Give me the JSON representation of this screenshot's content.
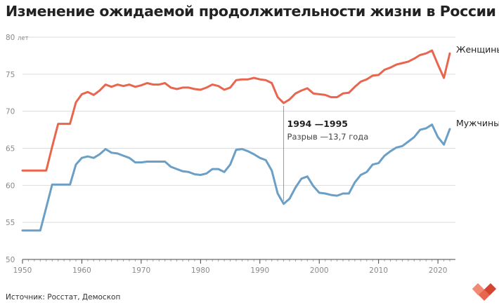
{
  "title": "Изменение ожидаемой продолжительности жизни в России",
  "source": "Источник: Росстат, Демоскоп",
  "logo_icon": "red-heart-pixel-icon",
  "chart_data": {
    "type": "line",
    "title": "Изменение ожидаемой продолжительности жизни в России",
    "xlabel": "",
    "ylabel": "лет",
    "xlim": [
      1950,
      2022
    ],
    "ylim": [
      50,
      80
    ],
    "x_ticks": [
      1950,
      1960,
      1970,
      1980,
      1990,
      2000,
      2010,
      2020
    ],
    "y_ticks": [
      50,
      55,
      60,
      65,
      70,
      75,
      80
    ],
    "y_unit_label": "80 лет",
    "grid": true,
    "colors": {
      "female": "#e8664e",
      "male": "#6b9fc6",
      "grid": "#dddddd",
      "axis": "#444444",
      "annotation": "#999999"
    },
    "x": [
      1950,
      1951,
      1952,
      1953,
      1954,
      1955,
      1956,
      1957,
      1958,
      1959,
      1960,
      1961,
      1962,
      1963,
      1964,
      1965,
      1966,
      1967,
      1968,
      1969,
      1970,
      1971,
      1972,
      1973,
      1974,
      1975,
      1976,
      1977,
      1978,
      1979,
      1980,
      1981,
      1982,
      1983,
      1984,
      1985,
      1986,
      1987,
      1988,
      1989,
      1990,
      1991,
      1992,
      1993,
      1994,
      1995,
      1996,
      1997,
      1998,
      1999,
      2000,
      2001,
      2002,
      2003,
      2004,
      2005,
      2006,
      2007,
      2008,
      2009,
      2010,
      2011,
      2012,
      2013,
      2014,
      2015,
      2016,
      2017,
      2018,
      2019,
      2020,
      2021,
      2022
    ],
    "series": [
      {
        "name": "Женщины",
        "key": "female",
        "values": [
          62.0,
          62.0,
          62.0,
          62.0,
          62.0,
          65.2,
          68.3,
          68.3,
          68.3,
          71.2,
          72.3,
          72.6,
          72.2,
          72.8,
          73.6,
          73.3,
          73.6,
          73.4,
          73.6,
          73.3,
          73.5,
          73.8,
          73.6,
          73.6,
          73.8,
          73.2,
          73.0,
          73.2,
          73.2,
          73.0,
          72.9,
          73.2,
          73.6,
          73.4,
          72.9,
          73.2,
          74.2,
          74.3,
          74.3,
          74.5,
          74.3,
          74.2,
          73.8,
          71.9,
          71.1,
          71.6,
          72.4,
          72.8,
          73.1,
          72.4,
          72.3,
          72.2,
          71.9,
          71.9,
          72.4,
          72.5,
          73.3,
          74.0,
          74.3,
          74.8,
          74.9,
          75.6,
          75.9,
          76.3,
          76.5,
          76.7,
          77.1,
          77.6,
          77.8,
          78.2,
          76.3,
          74.5,
          77.8
        ]
      },
      {
        "name": "Мужчины",
        "key": "male",
        "values": [
          53.9,
          53.9,
          53.9,
          53.9,
          57.0,
          60.1,
          60.1,
          60.1,
          60.1,
          62.8,
          63.7,
          63.9,
          63.7,
          64.2,
          64.9,
          64.4,
          64.3,
          64.0,
          63.7,
          63.1,
          63.1,
          63.2,
          63.2,
          63.2,
          63.2,
          62.5,
          62.2,
          61.9,
          61.8,
          61.5,
          61.4,
          61.6,
          62.2,
          62.2,
          61.8,
          62.8,
          64.8,
          64.9,
          64.6,
          64.2,
          63.7,
          63.4,
          62.0,
          58.9,
          57.5,
          58.2,
          59.7,
          60.9,
          61.2,
          59.9,
          59.0,
          58.9,
          58.7,
          58.6,
          58.9,
          58.9,
          60.4,
          61.4,
          61.8,
          62.8,
          63.0,
          64.0,
          64.6,
          65.1,
          65.3,
          65.9,
          66.5,
          67.5,
          67.7,
          68.2,
          66.5,
          65.5,
          67.6
        ]
      }
    ],
    "annotation": {
      "year": 1994,
      "title": "1994 —1995",
      "text": "Разрыв —13,7 года"
    }
  }
}
